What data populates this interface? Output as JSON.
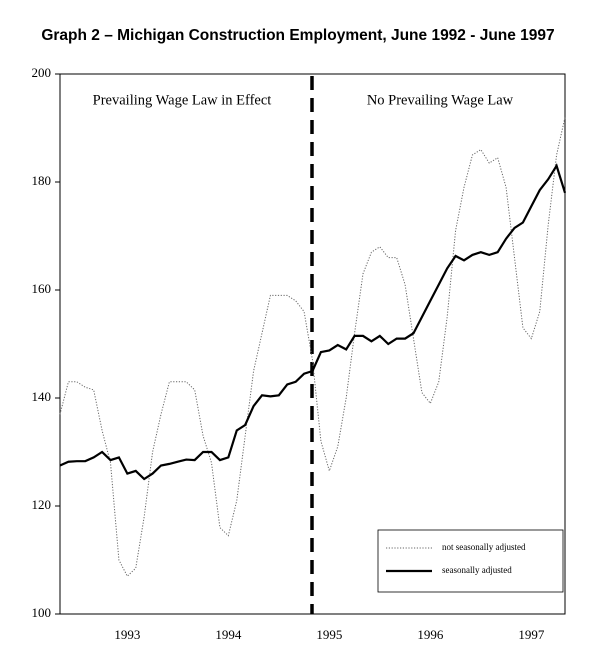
{
  "chart_data": {
    "type": "line",
    "title": "Graph 2 – Michigan Construction Employment, June 1992 - June 1997",
    "categories": [
      null,
      null,
      null,
      null,
      null,
      null,
      null,
      null,
      "1993",
      null,
      null,
      null,
      null,
      null,
      null,
      null,
      null,
      null,
      null,
      null,
      "1994",
      null,
      null,
      null,
      null,
      null,
      null,
      null,
      null,
      null,
      null,
      null,
      "1995",
      null,
      null,
      null,
      null,
      null,
      null,
      null,
      null,
      null,
      null,
      null,
      "1996",
      null,
      null,
      null,
      null,
      null,
      null,
      null,
      null,
      null,
      null,
      null,
      "1997",
      null,
      null,
      null,
      null
    ],
    "series": [
      {
        "name": "not seasonally adjusted",
        "color": "#666666",
        "style": "dotted",
        "values": [
          137,
          143,
          143,
          142,
          141.5,
          134,
          128,
          110,
          107,
          108.5,
          118,
          130,
          137,
          143,
          143,
          143,
          141.5,
          133,
          128,
          116,
          114.5,
          121,
          133,
          145,
          152,
          159,
          159,
          159,
          158,
          156,
          147,
          132,
          126.5,
          131,
          140,
          152,
          163,
          167,
          168,
          166,
          166,
          161,
          151,
          141,
          139,
          143,
          155,
          171,
          179,
          185,
          186,
          183.5,
          184.5,
          179,
          166,
          153,
          151,
          156,
          172,
          185,
          192
        ]
      },
      {
        "name": "seasonally adjusted",
        "color": "#000000",
        "style": "solid",
        "values": [
          127.5,
          128.2,
          128.3,
          128.3,
          129,
          130,
          128.5,
          129,
          126,
          126.5,
          125,
          126,
          127.5,
          127.8,
          128.2,
          128.6,
          128.5,
          130,
          130,
          128.5,
          129,
          134,
          135,
          138.5,
          140.5,
          140.3,
          140.5,
          142.5,
          143,
          144.5,
          145,
          148.5,
          148.8,
          149.8,
          149,
          151.5,
          151.5,
          150.5,
          151.5,
          150,
          151,
          151,
          152,
          155,
          158,
          161,
          164,
          166.3,
          165.5,
          166.5,
          167,
          166.5,
          167,
          169.5,
          171.5,
          172.5,
          175.5,
          178.5,
          180.5,
          183,
          178
        ]
      }
    ],
    "annotations": [
      "Prevailing Wage Law in Effect",
      "No Prevailing Wage Law"
    ],
    "ylim": [
      100,
      200
    ],
    "yticks": [
      100,
      120,
      140,
      160,
      180,
      200
    ],
    "grid": false
  }
}
